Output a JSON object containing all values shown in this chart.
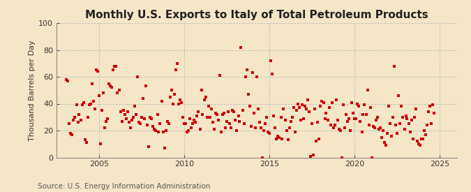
{
  "title": "Monthly U.S. Exports to Italy of Total Petroleum Products",
  "ylabel": "Thousand Barrels per Day",
  "source": "Source: U.S. Energy Information Administration",
  "bg_color": "#f5e6c8",
  "marker_color": "#cc0000",
  "xlim": [
    2002.5,
    2026.0
  ],
  "ylim": [
    0,
    100
  ],
  "yticks": [
    0,
    20,
    40,
    60,
    80,
    100
  ],
  "xticks": [
    2005,
    2010,
    2015,
    2020,
    2025
  ],
  "title_fontsize": 11,
  "ylabel_fontsize": 8,
  "source_fontsize": 7.5,
  "data_points": [
    [
      2003.08,
      58
    ],
    [
      2003.17,
      57
    ],
    [
      2003.25,
      25
    ],
    [
      2003.33,
      18
    ],
    [
      2003.42,
      17
    ],
    [
      2003.5,
      28
    ],
    [
      2003.58,
      30
    ],
    [
      2003.67,
      39
    ],
    [
      2003.75,
      26
    ],
    [
      2003.83,
      32
    ],
    [
      2003.92,
      28
    ],
    [
      2004.0,
      39
    ],
    [
      2004.08,
      41
    ],
    [
      2004.17,
      13
    ],
    [
      2004.25,
      11
    ],
    [
      2004.33,
      30
    ],
    [
      2004.42,
      39
    ],
    [
      2004.5,
      40
    ],
    [
      2004.58,
      55
    ],
    [
      2004.67,
      42
    ],
    [
      2004.75,
      36
    ],
    [
      2004.83,
      65
    ],
    [
      2004.92,
      64
    ],
    [
      2005.0,
      46
    ],
    [
      2005.08,
      10
    ],
    [
      2005.17,
      35
    ],
    [
      2005.25,
      48
    ],
    [
      2005.33,
      22
    ],
    [
      2005.42,
      27
    ],
    [
      2005.5,
      29
    ],
    [
      2005.58,
      55
    ],
    [
      2005.67,
      53
    ],
    [
      2005.75,
      52
    ],
    [
      2005.83,
      65
    ],
    [
      2005.92,
      68
    ],
    [
      2006.0,
      68
    ],
    [
      2006.08,
      48
    ],
    [
      2006.17,
      50
    ],
    [
      2006.25,
      34
    ],
    [
      2006.33,
      27
    ],
    [
      2006.42,
      35
    ],
    [
      2006.5,
      32
    ],
    [
      2006.58,
      29
    ],
    [
      2006.67,
      34
    ],
    [
      2006.75,
      26
    ],
    [
      2006.83,
      22
    ],
    [
      2006.92,
      28
    ],
    [
      2007.0,
      30
    ],
    [
      2007.08,
      38
    ],
    [
      2007.17,
      32
    ],
    [
      2007.25,
      60
    ],
    [
      2007.33,
      26
    ],
    [
      2007.42,
      25
    ],
    [
      2007.5,
      30
    ],
    [
      2007.58,
      44
    ],
    [
      2007.67,
      29
    ],
    [
      2007.75,
      53
    ],
    [
      2007.83,
      24
    ],
    [
      2007.92,
      8
    ],
    [
      2008.0,
      30
    ],
    [
      2008.08,
      29
    ],
    [
      2008.17,
      23
    ],
    [
      2008.25,
      21
    ],
    [
      2008.33,
      20
    ],
    [
      2008.42,
      32
    ],
    [
      2008.5,
      19
    ],
    [
      2008.58,
      25
    ],
    [
      2008.67,
      42
    ],
    [
      2008.75,
      19
    ],
    [
      2008.83,
      7
    ],
    [
      2008.92,
      20
    ],
    [
      2009.0,
      27
    ],
    [
      2009.08,
      25
    ],
    [
      2009.17,
      45
    ],
    [
      2009.25,
      50
    ],
    [
      2009.33,
      40
    ],
    [
      2009.42,
      47
    ],
    [
      2009.5,
      65
    ],
    [
      2009.58,
      70
    ],
    [
      2009.67,
      40
    ],
    [
      2009.75,
      43
    ],
    [
      2009.83,
      41
    ],
    [
      2009.92,
      30
    ],
    [
      2010.0,
      25
    ],
    [
      2010.08,
      25
    ],
    [
      2010.17,
      19
    ],
    [
      2010.25,
      20
    ],
    [
      2010.33,
      29
    ],
    [
      2010.42,
      22
    ],
    [
      2010.5,
      25
    ],
    [
      2010.58,
      28
    ],
    [
      2010.67,
      26
    ],
    [
      2010.75,
      31
    ],
    [
      2010.83,
      34
    ],
    [
      2010.92,
      21
    ],
    [
      2011.0,
      50
    ],
    [
      2011.08,
      32
    ],
    [
      2011.17,
      43
    ],
    [
      2011.25,
      45
    ],
    [
      2011.33,
      30
    ],
    [
      2011.42,
      38
    ],
    [
      2011.5,
      30
    ],
    [
      2011.58,
      36
    ],
    [
      2011.67,
      26
    ],
    [
      2011.75,
      21
    ],
    [
      2011.83,
      33
    ],
    [
      2011.92,
      32
    ],
    [
      2012.0,
      28
    ],
    [
      2012.08,
      61
    ],
    [
      2012.17,
      19
    ],
    [
      2012.25,
      32
    ],
    [
      2012.33,
      33
    ],
    [
      2012.42,
      22
    ],
    [
      2012.5,
      27
    ],
    [
      2012.58,
      34
    ],
    [
      2012.67,
      25
    ],
    [
      2012.75,
      22
    ],
    [
      2012.83,
      35
    ],
    [
      2012.92,
      34
    ],
    [
      2013.0,
      28
    ],
    [
      2013.08,
      20
    ],
    [
      2013.17,
      31
    ],
    [
      2013.25,
      27
    ],
    [
      2013.33,
      82
    ],
    [
      2013.42,
      35
    ],
    [
      2013.5,
      25
    ],
    [
      2013.58,
      60
    ],
    [
      2013.67,
      65
    ],
    [
      2013.75,
      47
    ],
    [
      2013.83,
      38
    ],
    [
      2013.92,
      23
    ],
    [
      2014.0,
      63
    ],
    [
      2014.08,
      33
    ],
    [
      2014.17,
      22
    ],
    [
      2014.25,
      60
    ],
    [
      2014.33,
      36
    ],
    [
      2014.42,
      26
    ],
    [
      2014.5,
      22
    ],
    [
      2014.58,
      0
    ],
    [
      2014.67,
      20
    ],
    [
      2014.75,
      25
    ],
    [
      2014.83,
      30
    ],
    [
      2014.92,
      19
    ],
    [
      2015.0,
      18
    ],
    [
      2015.08,
      72
    ],
    [
      2015.17,
      62
    ],
    [
      2015.25,
      31
    ],
    [
      2015.33,
      22
    ],
    [
      2015.42,
      14
    ],
    [
      2015.5,
      16
    ],
    [
      2015.58,
      15
    ],
    [
      2015.67,
      30
    ],
    [
      2015.75,
      14
    ],
    [
      2015.83,
      36
    ],
    [
      2015.92,
      28
    ],
    [
      2016.0,
      20
    ],
    [
      2016.08,
      13
    ],
    [
      2016.17,
      22
    ],
    [
      2016.25,
      27
    ],
    [
      2016.33,
      30
    ],
    [
      2016.42,
      37
    ],
    [
      2016.5,
      19
    ],
    [
      2016.58,
      35
    ],
    [
      2016.67,
      40
    ],
    [
      2016.75,
      37
    ],
    [
      2016.83,
      28
    ],
    [
      2016.92,
      39
    ],
    [
      2017.0,
      29
    ],
    [
      2017.08,
      38
    ],
    [
      2017.17,
      36
    ],
    [
      2017.25,
      43
    ],
    [
      2017.33,
      34
    ],
    [
      2017.42,
      1
    ],
    [
      2017.5,
      25
    ],
    [
      2017.58,
      2
    ],
    [
      2017.67,
      36
    ],
    [
      2017.75,
      12
    ],
    [
      2017.83,
      26
    ],
    [
      2017.92,
      14
    ],
    [
      2018.0,
      38
    ],
    [
      2018.08,
      42
    ],
    [
      2018.17,
      41
    ],
    [
      2018.25,
      29
    ],
    [
      2018.33,
      33
    ],
    [
      2018.42,
      28
    ],
    [
      2018.5,
      37
    ],
    [
      2018.58,
      24
    ],
    [
      2018.67,
      41
    ],
    [
      2018.75,
      22
    ],
    [
      2018.83,
      24
    ],
    [
      2018.92,
      43
    ],
    [
      2019.0,
      28
    ],
    [
      2019.08,
      21
    ],
    [
      2019.17,
      20
    ],
    [
      2019.25,
      0
    ],
    [
      2019.33,
      39
    ],
    [
      2019.42,
      22
    ],
    [
      2019.5,
      32
    ],
    [
      2019.58,
      27
    ],
    [
      2019.67,
      29
    ],
    [
      2019.75,
      20
    ],
    [
      2019.83,
      41
    ],
    [
      2019.92,
      33
    ],
    [
      2020.0,
      29
    ],
    [
      2020.08,
      29
    ],
    [
      2020.17,
      40
    ],
    [
      2020.25,
      38
    ],
    [
      2020.33,
      27
    ],
    [
      2020.42,
      19
    ],
    [
      2020.5,
      32
    ],
    [
      2020.58,
      39
    ],
    [
      2020.67,
      32
    ],
    [
      2020.75,
      50
    ],
    [
      2020.83,
      24
    ],
    [
      2020.92,
      37
    ],
    [
      2021.0,
      0
    ],
    [
      2021.08,
      23
    ],
    [
      2021.17,
      22
    ],
    [
      2021.25,
      28
    ],
    [
      2021.33,
      30
    ],
    [
      2021.42,
      21
    ],
    [
      2021.5,
      22
    ],
    [
      2021.58,
      15
    ],
    [
      2021.67,
      20
    ],
    [
      2021.75,
      11
    ],
    [
      2021.83,
      9
    ],
    [
      2021.92,
      18
    ],
    [
      2022.0,
      38
    ],
    [
      2022.08,
      25
    ],
    [
      2022.17,
      16
    ],
    [
      2022.25,
      30
    ],
    [
      2022.33,
      68
    ],
    [
      2022.42,
      24
    ],
    [
      2022.5,
      18
    ],
    [
      2022.58,
      46
    ],
    [
      2022.67,
      25
    ],
    [
      2022.75,
      38
    ],
    [
      2022.83,
      30
    ],
    [
      2022.92,
      21
    ],
    [
      2023.0,
      31
    ],
    [
      2023.08,
      29
    ],
    [
      2023.17,
      25
    ],
    [
      2023.25,
      19
    ],
    [
      2023.33,
      28
    ],
    [
      2023.42,
      14
    ],
    [
      2023.5,
      30
    ],
    [
      2023.58,
      36
    ],
    [
      2023.67,
      12
    ],
    [
      2023.75,
      10
    ],
    [
      2023.83,
      9
    ],
    [
      2023.92,
      14
    ],
    [
      2024.0,
      14
    ],
    [
      2024.08,
      20
    ],
    [
      2024.17,
      17
    ],
    [
      2024.25,
      24
    ],
    [
      2024.33,
      34
    ],
    [
      2024.42,
      38
    ],
    [
      2024.5,
      25
    ],
    [
      2024.58,
      39
    ],
    [
      2024.67,
      33
    ]
  ]
}
